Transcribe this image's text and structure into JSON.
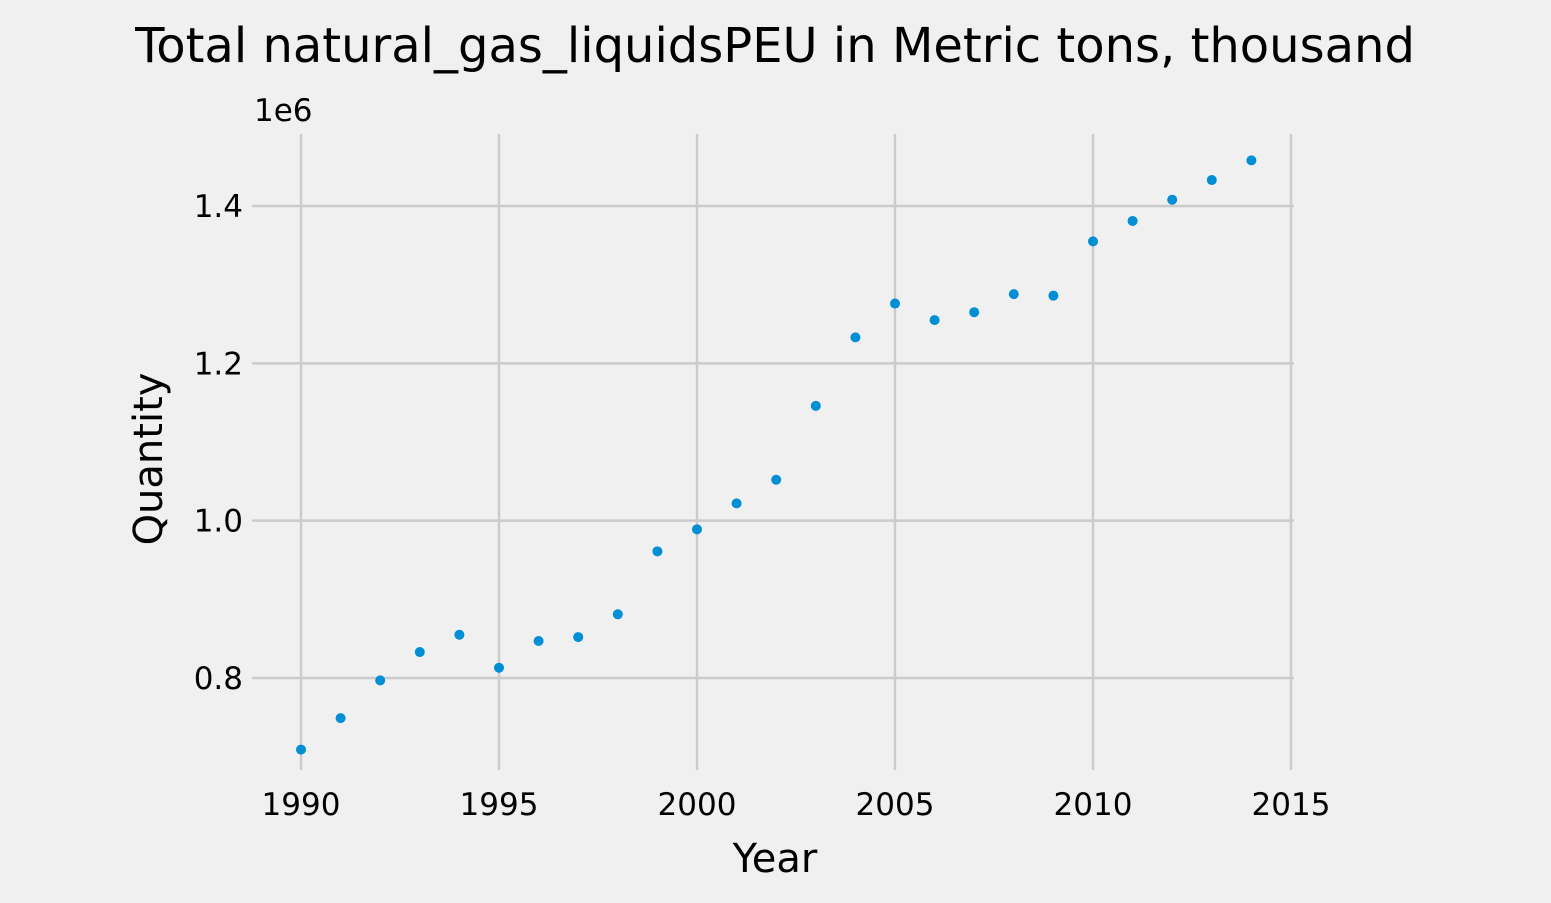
{
  "chart_data": {
    "type": "scatter",
    "title": "Total natural_gas_liquidsPEU in Metric tons,  thousand",
    "xlabel": "Year",
    "ylabel": "Quantity",
    "offset_text": "1e6",
    "y_scale_factor": 1000000,
    "xlim": [
      1990,
      2015
    ],
    "ylim": [
      0.68,
      1.49
    ],
    "x_ticks": [
      1990,
      1995,
      2000,
      2005,
      2010,
      2015
    ],
    "x_tick_labels": [
      "1990",
      "1995",
      "2000",
      "2005",
      "2010",
      "2015"
    ],
    "y_ticks": [
      0.8,
      1.0,
      1.2,
      1.4
    ],
    "y_tick_labels": [
      "0.8",
      "1.0",
      "1.2",
      "1.4"
    ],
    "grid": true,
    "marker_color": "#008fd5",
    "x": [
      1990,
      1991,
      1992,
      1993,
      1994,
      1995,
      1996,
      1997,
      1998,
      1999,
      2000,
      2001,
      2002,
      2003,
      2004,
      2005,
      2006,
      2007,
      2008,
      2009,
      2010,
      2011,
      2012,
      2013,
      2014
    ],
    "y": [
      0.709,
      0.749,
      0.797,
      0.833,
      0.855,
      0.813,
      0.847,
      0.852,
      0.881,
      0.961,
      0.989,
      1.022,
      1.052,
      1.146,
      1.233,
      1.276,
      1.255,
      1.265,
      1.288,
      1.286,
      1.355,
      1.381,
      1.408,
      1.433,
      1.458
    ]
  }
}
